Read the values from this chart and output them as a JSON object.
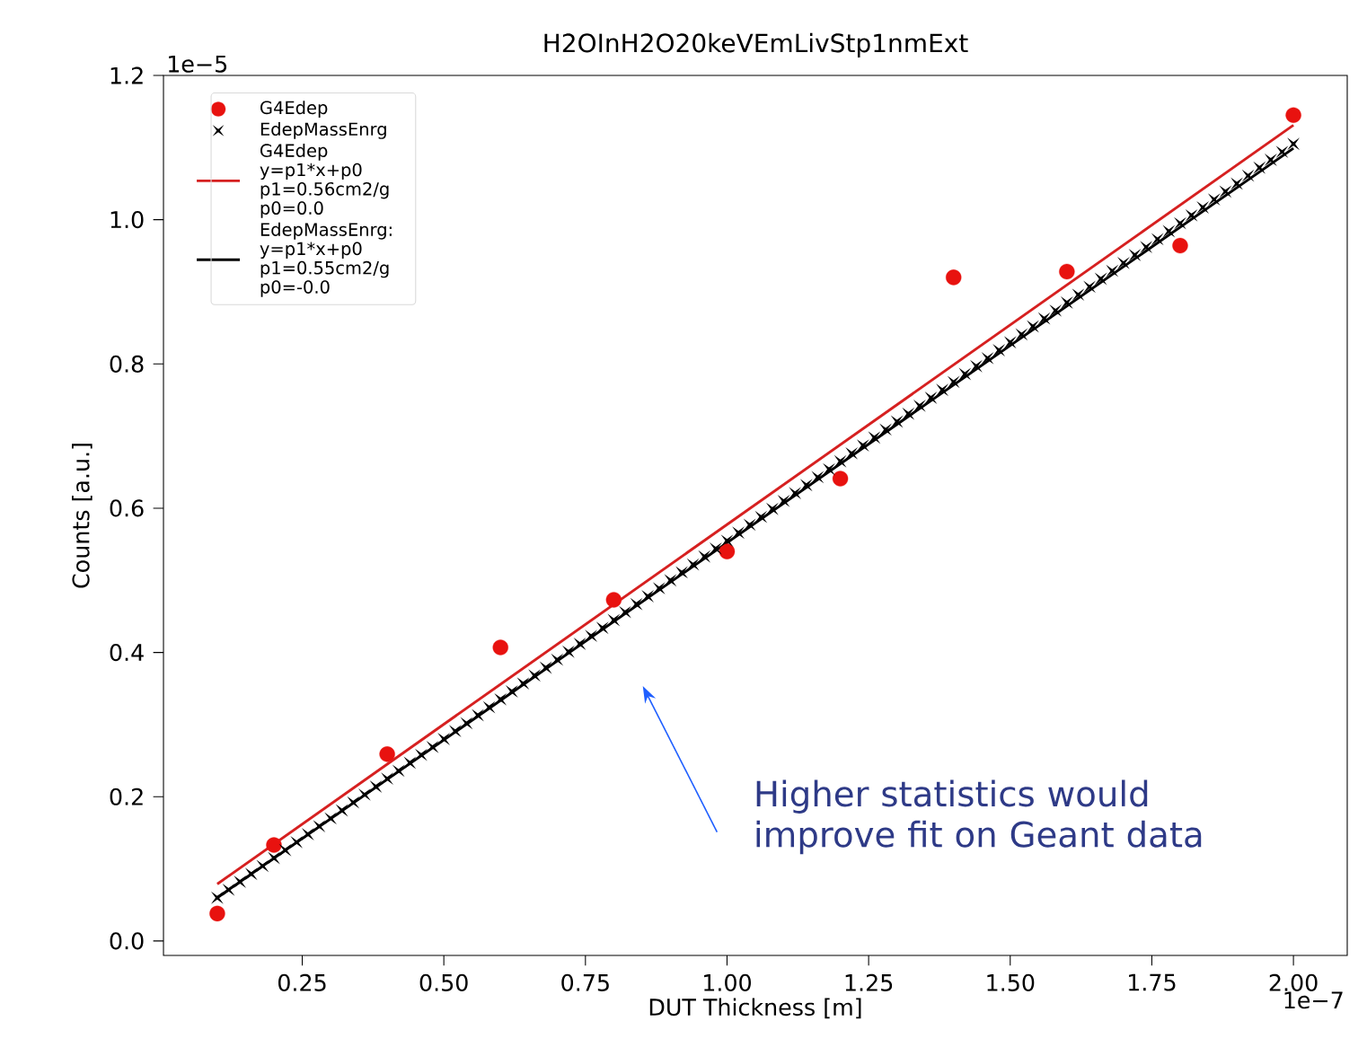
{
  "chart_data": {
    "type": "scatter",
    "title": "H2OInH2O20keVEmLivStp1nmExt",
    "xlabel": "DUT Thickness [m]",
    "ylabel": "Counts [a.u.]",
    "xlim": [
      0.005,
      2.095
    ],
    "ylim": [
      -0.02,
      1.2
    ],
    "xticks": [
      {
        "value": 0.25,
        "label": "0.25"
      },
      {
        "value": 0.5,
        "label": "0.50"
      },
      {
        "value": 0.75,
        "label": "0.75"
      },
      {
        "value": 1.0,
        "label": "1.00"
      },
      {
        "value": 1.25,
        "label": "1.25"
      },
      {
        "value": 1.5,
        "label": "1.50"
      },
      {
        "value": 1.75,
        "label": "1.75"
      },
      {
        "value": 2.0,
        "label": "2.00"
      }
    ],
    "yticks": [
      {
        "value": 0.0,
        "label": "0.0"
      },
      {
        "value": 0.2,
        "label": "0.2"
      },
      {
        "value": 0.4,
        "label": "0.4"
      },
      {
        "value": 0.6,
        "label": "0.6"
      },
      {
        "value": 0.8,
        "label": "0.8"
      },
      {
        "value": 1.0,
        "label": "1.0"
      },
      {
        "value": 1.2,
        "label": "1.2"
      }
    ],
    "legend": "top left",
    "series": [
      {
        "name": "G4Edep",
        "marker": "circle",
        "color": "#e8120f",
        "x": [
          0.1,
          0.2,
          0.4,
          0.6,
          0.8,
          1.0,
          1.2,
          1.4,
          1.6,
          1.8,
          2.0
        ],
        "values": [
          0.038,
          0.133,
          0.259,
          0.407,
          0.473,
          0.54,
          0.641,
          0.92,
          0.928,
          0.964,
          1.145
        ]
      },
      {
        "name": "EdepMassEnrg",
        "marker": "cross",
        "color": "#000000",
        "x": [
          0.1,
          0.12,
          0.14,
          0.16,
          0.18,
          0.2,
          0.22,
          0.24,
          0.26,
          0.28,
          0.3,
          0.32,
          0.34,
          0.36,
          0.38,
          0.4,
          0.42,
          0.44,
          0.46,
          0.48,
          0.5,
          0.52,
          0.54,
          0.56,
          0.58,
          0.6,
          0.62,
          0.64,
          0.66,
          0.68,
          0.7,
          0.72,
          0.74,
          0.76,
          0.78,
          0.8,
          0.82,
          0.84,
          0.86,
          0.88,
          0.9,
          0.92,
          0.94,
          0.96,
          0.98,
          1.0,
          1.02,
          1.04,
          1.06,
          1.08,
          1.1,
          1.12,
          1.14,
          1.16,
          1.18,
          1.2,
          1.22,
          1.24,
          1.26,
          1.28,
          1.3,
          1.32,
          1.34,
          1.36,
          1.38,
          1.4,
          1.42,
          1.44,
          1.46,
          1.48,
          1.5,
          1.52,
          1.54,
          1.56,
          1.58,
          1.6,
          1.62,
          1.64,
          1.66,
          1.68,
          1.7,
          1.72,
          1.74,
          1.76,
          1.78,
          1.8,
          1.82,
          1.84,
          1.86,
          1.88,
          1.9,
          1.92,
          1.94,
          1.96,
          1.98,
          2.0
        ],
        "values": [
          0.06,
          0.071,
          0.082,
          0.093,
          0.104,
          0.115,
          0.126,
          0.137,
          0.148,
          0.159,
          0.17,
          0.181,
          0.192,
          0.203,
          0.214,
          0.225,
          0.236,
          0.247,
          0.258,
          0.269,
          0.28,
          0.291,
          0.302,
          0.313,
          0.324,
          0.335,
          0.346,
          0.357,
          0.368,
          0.379,
          0.39,
          0.401,
          0.412,
          0.423,
          0.434,
          0.445,
          0.456,
          0.467,
          0.478,
          0.489,
          0.5,
          0.511,
          0.522,
          0.533,
          0.544,
          0.555,
          0.566,
          0.577,
          0.588,
          0.599,
          0.61,
          0.621,
          0.632,
          0.643,
          0.654,
          0.665,
          0.676,
          0.687,
          0.698,
          0.709,
          0.72,
          0.731,
          0.742,
          0.753,
          0.764,
          0.775,
          0.786,
          0.797,
          0.808,
          0.819,
          0.83,
          0.841,
          0.852,
          0.863,
          0.874,
          0.885,
          0.896,
          0.907,
          0.918,
          0.929,
          0.94,
          0.951,
          0.962,
          0.973,
          0.984,
          0.995,
          1.006,
          1.017,
          1.028,
          1.039,
          1.05,
          1.061,
          1.072,
          1.083,
          1.094,
          1.105
        ]
      },
      {
        "name": "G4Edep y=p1*x+p0 p1=0.56cm2/g p0=0.0",
        "type": "line",
        "marker": "none",
        "line_style": "solid",
        "color": "#d62020",
        "x": [
          0.1,
          2.0
        ],
        "values": [
          0.079,
          1.131
        ]
      },
      {
        "name": "EdepMassEnrg: y=p1*x+p0 p1=0.55cm2/g p0=-0.0",
        "type": "line",
        "marker": "none",
        "line_style": "solid",
        "color": "#000000",
        "x": [
          0.1,
          2.0
        ],
        "values": [
          0.06,
          1.099
        ]
      }
    ],
    "annotations": [
      "1e−5",
      "1e−7",
      "Higher statistics would improve fit on Geant data"
    ]
  }
}
